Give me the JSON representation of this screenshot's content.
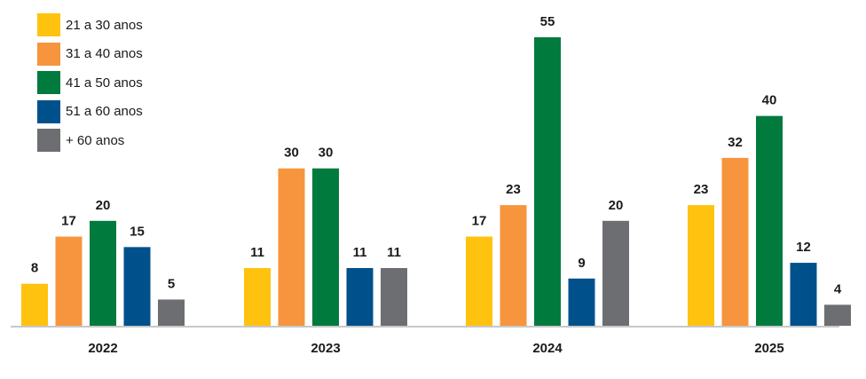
{
  "chart_data": {
    "type": "bar",
    "title": "",
    "xlabel": "",
    "ylabel": "",
    "categories": [
      "2022",
      "2023",
      "2024",
      "2025"
    ],
    "series": [
      {
        "name": "21 a 30 anos",
        "color": "#FFC20E",
        "values": [
          8,
          11,
          17,
          23
        ]
      },
      {
        "name": "31 a 40 anos",
        "color": "#F7943E",
        "values": [
          17,
          30,
          23,
          32
        ]
      },
      {
        "name": "41 a 50 anos",
        "color": "#007A3D",
        "values": [
          20,
          30,
          55,
          40
        ]
      },
      {
        "name": "51 a 60 anos",
        "color": "#00508C",
        "values": [
          15,
          11,
          9,
          12
        ]
      },
      {
        "name": "+ 60 anos",
        "color": "#6D6E71",
        "values": [
          5,
          11,
          20,
          4
        ]
      }
    ],
    "ylim": [
      0,
      55
    ],
    "grid": false,
    "legend_position": "top-left",
    "data_labels": true
  }
}
